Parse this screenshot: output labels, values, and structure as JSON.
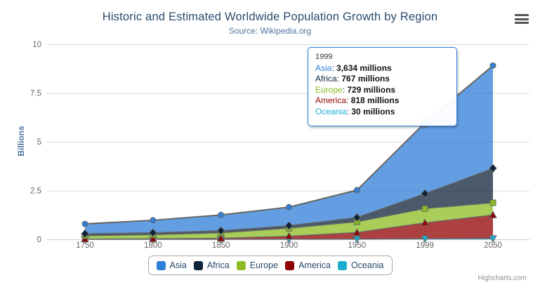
{
  "chart": {
    "title": "Historic and Estimated Worldwide Population Growth by Region",
    "subtitle": "Source: Wikipedia.org",
    "y_axis_title": "Billions",
    "credits": "Highcharts.com"
  },
  "icons": {
    "context_menu": "hamburger-icon"
  },
  "chart_data": {
    "type": "area",
    "stacking": "normal",
    "title": "Historic and Estimated Worldwide Population Growth by Region",
    "subtitle": "Source: Wikipedia.org",
    "xlabel": "",
    "ylabel": "Billions",
    "categories": [
      "1750",
      "1800",
      "1850",
      "1900",
      "1950",
      "1999",
      "2050"
    ],
    "ylim": [
      0,
      10
    ],
    "yticks": [
      0,
      2.5,
      5,
      7.5,
      10
    ],
    "unit": "millions",
    "grid_on": true,
    "grid_color": "#d8d8d8",
    "axis_line_color": "#c0d0e0",
    "line_color": "#666666",
    "fill_opacity": 0.75,
    "legend_position": "bottom",
    "series": [
      {
        "name": "Asia",
        "color": "#2f7ed8",
        "marker": "circle",
        "values": [
          502,
          635,
          809,
          947,
          1402,
          3634,
          5268
        ]
      },
      {
        "name": "Africa",
        "color": "#0d233a",
        "marker": "diamond",
        "values": [
          106,
          107,
          111,
          133,
          221,
          767,
          1766
        ]
      },
      {
        "name": "Europe",
        "color": "#8bbc21",
        "marker": "square",
        "values": [
          163,
          203,
          276,
          408,
          547,
          729,
          628
        ]
      },
      {
        "name": "America",
        "color": "#910000",
        "marker": "triangle",
        "values": [
          18,
          31,
          54,
          156,
          339,
          818,
          1201
        ]
      },
      {
        "name": "Oceania",
        "color": "#1aadce",
        "marker": "triangle-down",
        "values": [
          2,
          2,
          2,
          6,
          13,
          30,
          46
        ]
      }
    ],
    "stack_order_bottom_to_top": [
      "Oceania",
      "America",
      "Europe",
      "Africa",
      "Asia"
    ],
    "hover": {
      "series": "Asia",
      "category_index": 5
    }
  },
  "tooltip": {
    "header": "1999",
    "rows": [
      {
        "label": "Asia",
        "sep": ": ",
        "value": "3,634 millions",
        "color": "#2f7ed8"
      },
      {
        "label": "Africa",
        "sep": ": ",
        "value": "767 millions",
        "color": "#0d233a"
      },
      {
        "label": "Europe",
        "sep": ": ",
        "value": "729 millions",
        "color": "#8bbc21"
      },
      {
        "label": "America",
        "sep": ": ",
        "value": "818 millions",
        "color": "#910000"
      },
      {
        "label": "Oceania",
        "sep": ": ",
        "value": "30 millions",
        "color": "#1aadce"
      }
    ]
  },
  "legend": {
    "items": [
      {
        "label": "Asia",
        "color": "#2f7ed8"
      },
      {
        "label": "Africa",
        "color": "#0d233a"
      },
      {
        "label": "Europe",
        "color": "#8bbc21"
      },
      {
        "label": "America",
        "color": "#910000"
      },
      {
        "label": "Oceania",
        "color": "#1aadce"
      }
    ]
  }
}
